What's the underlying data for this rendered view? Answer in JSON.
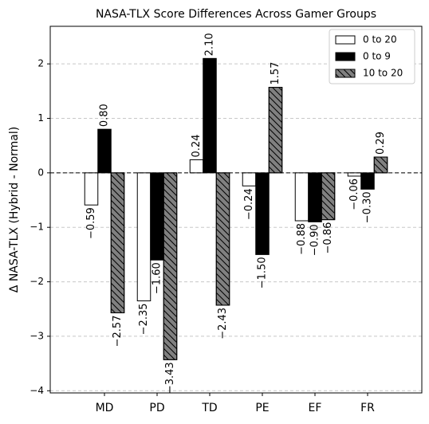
{
  "chart_data": {
    "type": "bar",
    "title": "NASA-TLX Score Differences Across Gamer Groups",
    "ylabel": "Δ NASA-TLX (Hybrid - Normal)",
    "categories": [
      "MD",
      "PD",
      "TD",
      "PE",
      "EF",
      "FR"
    ],
    "series": [
      {
        "name": "0 to 20",
        "color": "#ffffff",
        "hatch": false,
        "values": [
          -0.59,
          -2.35,
          0.24,
          -0.24,
          -0.88,
          -0.06
        ],
        "value_labels": [
          "−0.59",
          "−2.35",
          "0.24",
          "−0.24",
          "−0.88",
          "−0.06"
        ]
      },
      {
        "name": "0 to 9",
        "color": "#000000",
        "hatch": false,
        "values": [
          0.8,
          -1.6,
          2.1,
          -1.5,
          -0.9,
          -0.3
        ],
        "value_labels": [
          "0.80",
          "−1.60",
          "2.10",
          "−1.50",
          "−0.90",
          "−0.30"
        ]
      },
      {
        "name": "10 to 20",
        "color": "#808080",
        "hatch": true,
        "values": [
          -2.57,
          -3.43,
          -2.43,
          1.57,
          -0.86,
          0.29
        ],
        "value_labels": [
          "−2.57",
          "−3.43",
          "−2.43",
          "1.57",
          "−0.86",
          "0.29"
        ]
      }
    ],
    "edge_color": "#000000",
    "ylim": [
      -4.04,
      2.69
    ],
    "yticks": [
      {
        "value": -4,
        "label": "−4"
      },
      {
        "value": -3,
        "label": "−3"
      },
      {
        "value": -2,
        "label": "−2"
      },
      {
        "value": -1,
        "label": "−1"
      },
      0,
      1,
      2
    ],
    "grid": true,
    "reference_line": 0,
    "legend": "upper right"
  }
}
